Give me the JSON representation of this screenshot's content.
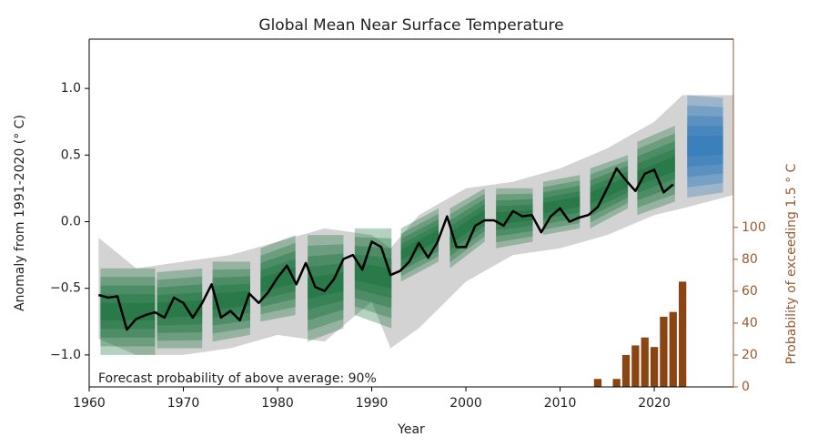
{
  "chart_data": {
    "type": "line",
    "title": "Global Mean Near Surface Temperature",
    "xlabel": "Year",
    "ylabel": "Anomaly from 1991-2020 (° C)",
    "y2label": "Probability of exceeding 1.5 ° C",
    "annotation": "Forecast probability of above average: 90%",
    "xlim": [
      1960,
      2028.4
    ],
    "ylim": [
      -1.24,
      1.37
    ],
    "y2lim": [
      0,
      218
    ],
    "xticks": [
      1960,
      1970,
      1980,
      1990,
      2000,
      2010,
      2020
    ],
    "yticks": [
      {
        "value": -1.0,
        "label": "−1.0"
      },
      {
        "value": -0.5,
        "label": "−0.5"
      },
      {
        "value": 0.0,
        "label": "0.0"
      },
      0.5,
      {
        "value": 1.0,
        "label": "1.0"
      }
    ],
    "y2ticks": [
      0,
      20,
      40,
      60,
      80,
      100
    ],
    "axis_color_y2": "#9a5a30",
    "envelope": {
      "color": "#d3d3d3",
      "x": [
        1961,
        1965,
        1970,
        1975,
        1980,
        1985,
        1990,
        1992,
        1995,
        2000,
        2005,
        2010,
        2015,
        2020,
        2023,
        2028.4
      ],
      "lower": [
        -0.88,
        -1.0,
        -1.0,
        -0.95,
        -0.85,
        -0.9,
        -0.6,
        -0.95,
        -0.8,
        -0.45,
        -0.25,
        -0.2,
        -0.1,
        0.05,
        0.1,
        0.2
      ],
      "upper": [
        -0.12,
        -0.35,
        -0.3,
        -0.25,
        -0.15,
        -0.05,
        -0.1,
        -0.2,
        0.05,
        0.25,
        0.3,
        0.4,
        0.55,
        0.75,
        0.95,
        0.95
      ]
    },
    "hindcast_color": "#0b6b2e",
    "hindcasts": [
      {
        "x": [
          1961.2,
          1967
        ],
        "lower": [
          -1.0,
          -1.0
        ],
        "upper": [
          -0.35,
          -0.35
        ]
      },
      {
        "x": [
          1967.2,
          1972
        ],
        "lower": [
          -0.95,
          -0.95
        ],
        "upper": [
          -0.38,
          -0.35
        ]
      },
      {
        "x": [
          1973.1,
          1977.1
        ],
        "lower": [
          -0.9,
          -0.85
        ],
        "upper": [
          -0.3,
          -0.3
        ]
      },
      {
        "x": [
          1978.2,
          1981.9
        ],
        "lower": [
          -0.75,
          -0.7
        ],
        "upper": [
          -0.2,
          -0.1
        ]
      },
      {
        "x": [
          1983.2,
          1987
        ],
        "lower": [
          -0.9,
          -0.8
        ],
        "upper": [
          -0.1,
          -0.1
        ]
      },
      {
        "x": [
          1988.2,
          1992.1
        ],
        "lower": [
          -0.7,
          -0.8
        ],
        "upper": [
          -0.05,
          -0.05
        ]
      },
      {
        "x": [
          1993.1,
          1997.1
        ],
        "lower": [
          -0.45,
          -0.3
        ],
        "upper": [
          -0.05,
          0.1
        ]
      },
      {
        "x": [
          1998.3,
          2002
        ],
        "lower": [
          -0.35,
          -0.15
        ],
        "upper": [
          0.1,
          0.25
        ]
      },
      {
        "x": [
          2003.2,
          2007.1
        ],
        "lower": [
          -0.2,
          -0.15
        ],
        "upper": [
          0.25,
          0.25
        ]
      },
      {
        "x": [
          2008.2,
          2012.1
        ],
        "lower": [
          -0.1,
          -0.05
        ],
        "upper": [
          0.3,
          0.35
        ]
      },
      {
        "x": [
          2013.2,
          2017.2
        ],
        "lower": [
          -0.05,
          0.1
        ],
        "upper": [
          0.4,
          0.5
        ]
      },
      {
        "x": [
          2018.2,
          2022.2
        ],
        "lower": [
          0.05,
          0.15
        ],
        "upper": [
          0.6,
          0.72
        ]
      }
    ],
    "forecast": {
      "color": "#1f6fb5",
      "x": [
        2023.5,
        2027.3
      ],
      "lower": [
        0.18,
        0.22
      ],
      "upper": [
        0.95,
        0.93
      ]
    },
    "observations": {
      "color": "#000000",
      "x": [
        1961,
        1962,
        1963,
        1964,
        1965,
        1966,
        1967,
        1968,
        1969,
        1970,
        1971,
        1972,
        1973,
        1974,
        1975,
        1976,
        1977,
        1978,
        1979,
        1980,
        1981,
        1982,
        1983,
        1984,
        1985,
        1986,
        1987,
        1988,
        1989,
        1990,
        1991,
        1992,
        1993,
        1994,
        1995,
        1996,
        1997,
        1998,
        1999,
        2000,
        2001,
        2002,
        2003,
        2004,
        2005,
        2006,
        2007,
        2008,
        2009,
        2010,
        2011,
        2012,
        2013,
        2014,
        2015,
        2016,
        2017,
        2018,
        2019,
        2020,
        2021,
        2022
      ],
      "values": [
        -0.55,
        -0.57,
        -0.56,
        -0.81,
        -0.73,
        -0.7,
        -0.68,
        -0.72,
        -0.57,
        -0.61,
        -0.72,
        -0.61,
        -0.47,
        -0.72,
        -0.67,
        -0.74,
        -0.54,
        -0.61,
        -0.53,
        -0.42,
        -0.33,
        -0.47,
        -0.31,
        -0.49,
        -0.52,
        -0.43,
        -0.28,
        -0.25,
        -0.36,
        -0.15,
        -0.19,
        -0.4,
        -0.37,
        -0.3,
        -0.16,
        -0.27,
        -0.15,
        0.04,
        -0.19,
        -0.19,
        -0.03,
        0.01,
        0.01,
        -0.03,
        0.08,
        0.04,
        0.05,
        -0.08,
        0.04,
        0.1,
        0.0,
        0.03,
        0.05,
        0.11,
        0.25,
        0.4,
        0.31,
        0.23,
        0.36,
        0.39,
        0.22,
        0.28
      ]
    },
    "probability": {
      "axis": "y2",
      "color": "#8b4513",
      "x": [
        2014,
        2016,
        2017,
        2018,
        2019,
        2020,
        2021,
        2022,
        2023
      ],
      "values": [
        5,
        5,
        20,
        26,
        31,
        25,
        44,
        47,
        66
      ]
    }
  }
}
